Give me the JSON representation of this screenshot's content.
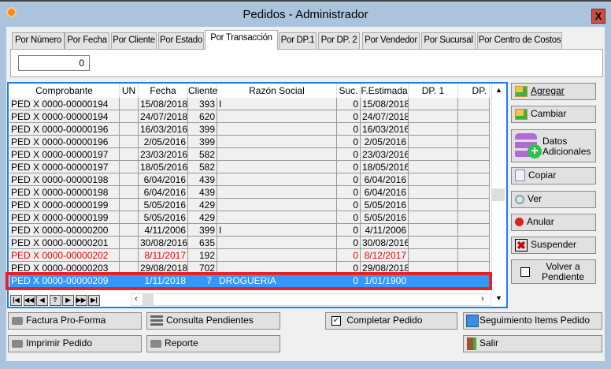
{
  "window": {
    "title": "Pedidos -  Administrador",
    "close_label": "X"
  },
  "tabs": [
    "Por Número",
    "Por Fecha",
    "Por Cliente",
    "Por Estado",
    "Por Transacción",
    "Por DP.1",
    "Por DP. 2",
    "Por Vendedor",
    "Por Sucursal",
    "Por Centro de Costos"
  ],
  "active_tab": "Por Transacción",
  "transaction_input": {
    "value": "0"
  },
  "grid": {
    "columns": [
      "Comprobante",
      "UN",
      "Fecha",
      "Cliente",
      "Razón Social",
      "Suc.",
      "F.Estimada",
      "DP. 1",
      "DP."
    ],
    "rows": [
      [
        "PED  X 0000-00000194",
        "",
        "15/08/2018",
        "393",
        "I",
        "0",
        "15/08/2018",
        "",
        ""
      ],
      [
        "PED  X 0000-00000194",
        "",
        "24/07/2018",
        "620",
        "",
        "0",
        "24/07/2018",
        "",
        ""
      ],
      [
        "PED  X 0000-00000196",
        "",
        "16/03/2016",
        "399",
        "",
        "0",
        "16/03/2016",
        "",
        ""
      ],
      [
        "PED  X 0000-00000196",
        "",
        "2/05/2016",
        "399",
        "",
        "0",
        "2/05/2016",
        "",
        ""
      ],
      [
        "PED  X 0000-00000197",
        "",
        "23/03/2016",
        "582",
        "",
        "0",
        "23/03/2016",
        "",
        ""
      ],
      [
        "PED  X 0000-00000197",
        "",
        "18/05/2016",
        "582",
        "",
        "0",
        "18/05/2016",
        "",
        ""
      ],
      [
        "PED  X 0000-00000198",
        "",
        "6/04/2016",
        "439",
        "",
        "0",
        "6/04/2016",
        "",
        ""
      ],
      [
        "PED  X 0000-00000198",
        "",
        "6/04/2016",
        "439",
        "",
        "0",
        "6/04/2016",
        "",
        ""
      ],
      [
        "PED  X 0000-00000199",
        "",
        "5/05/2016",
        "429",
        "",
        "0",
        "5/05/2016",
        "",
        ""
      ],
      [
        "PED  X 0000-00000199",
        "",
        "5/05/2016",
        "429",
        "",
        "0",
        "5/05/2016",
        "",
        ""
      ],
      [
        "PED  X 0000-00000200",
        "",
        "4/11/2006",
        "399",
        "I",
        "0",
        "4/11/2006",
        "",
        ""
      ],
      [
        "PED  X 0000-00000201",
        "",
        "30/08/2016",
        "635",
        "",
        "0",
        "30/08/2016",
        "",
        ""
      ],
      [
        "PED  X 0000-00000202",
        "",
        "8/11/2017",
        "192",
        "",
        "0",
        "8/12/2017",
        "",
        ""
      ],
      [
        "PED  X 0000-00000203",
        "",
        "29/08/2018",
        "702",
        "",
        "0",
        "29/08/2018",
        "",
        ""
      ],
      [
        "PED  X 0000-00000209",
        "",
        "1/11/2018",
        "7",
        "DROGUERIA",
        "0",
        "1/01/1900",
        "",
        ""
      ]
    ],
    "red_row": 12,
    "selected_row": 14,
    "nav_buttons": [
      "first",
      "prev-page",
      "prev",
      "?",
      "next",
      "next-page",
      "last"
    ]
  },
  "side_buttons": {
    "agregar": "Agregar",
    "cambiar": "Cambiar",
    "datos": "Datos Adicionales",
    "copiar": "Copiar",
    "ver": "Ver",
    "anular": "Anular",
    "suspender": "Suspender",
    "volver": "Volver a Pendiente"
  },
  "bottom_buttons": {
    "factura": "Factura Pro-Forma",
    "consulta": "Consulta Pendientes",
    "completar": "Completar Pedido",
    "seguimiento": "Seguimiento Items Pedido",
    "imprimir": "Imprimir Pedido",
    "reporte": "Reporte",
    "salir": "Salir"
  },
  "colors": {
    "selection": "#3399ff",
    "highlight_border": "#e8202a",
    "grid_border": "#1e7ef0",
    "red_text": "#ee0000"
  }
}
